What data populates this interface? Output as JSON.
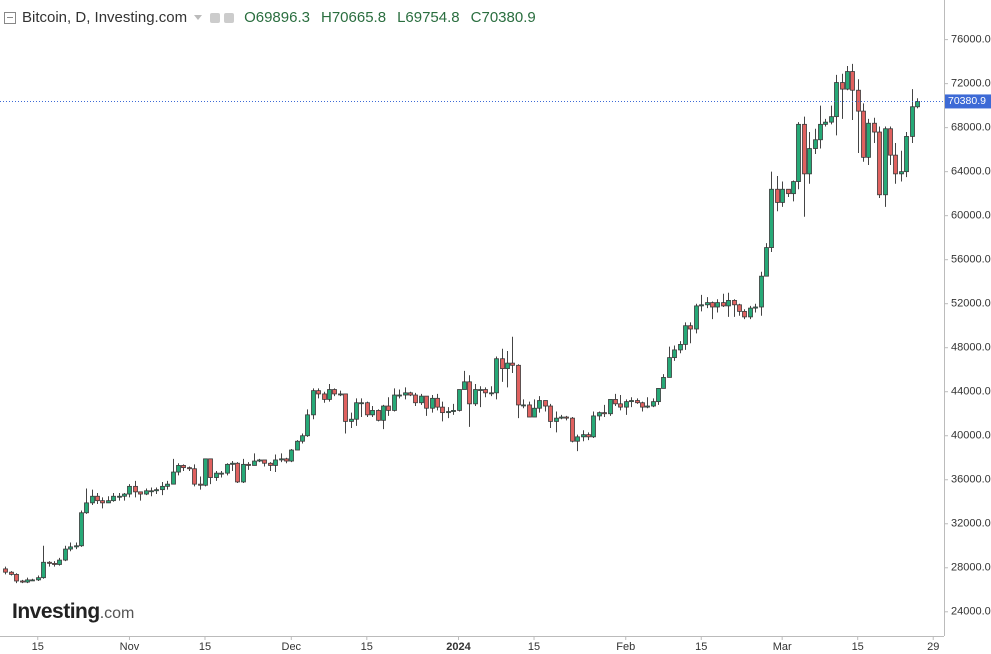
{
  "chart_data": {
    "type": "candlestick",
    "title": "Bitcoin, D, Investing.com",
    "ohlc_labels": [
      "O",
      "H",
      "L",
      "C"
    ],
    "watermark": [
      "Investing",
      ".com"
    ],
    "up_color": "#26a977",
    "down_color": "#e0615f",
    "x": [
      "2023-10-09",
      "2023-10-10",
      "2023-10-11",
      "2023-10-12",
      "2023-10-13",
      "2023-10-14",
      "2023-10-15",
      "2023-10-16",
      "2023-10-17",
      "2023-10-18",
      "2023-10-19",
      "2023-10-20",
      "2023-10-21",
      "2023-10-22",
      "2023-10-23",
      "2023-10-24",
      "2023-10-25",
      "2023-10-26",
      "2023-10-27",
      "2023-10-28",
      "2023-10-29",
      "2023-10-30",
      "2023-10-31",
      "2023-11-01",
      "2023-11-02",
      "2023-11-03",
      "2023-11-04",
      "2023-11-05",
      "2023-11-06",
      "2023-11-07",
      "2023-11-08",
      "2023-11-09",
      "2023-11-10",
      "2023-11-11",
      "2023-11-12",
      "2023-11-13",
      "2023-11-14",
      "2023-11-15",
      "2023-11-16",
      "2023-11-17",
      "2023-11-18",
      "2023-11-19",
      "2023-11-20",
      "2023-11-21",
      "2023-11-22",
      "2023-11-23",
      "2023-11-24",
      "2023-11-25",
      "2023-11-26",
      "2023-11-27",
      "2023-11-28",
      "2023-11-29",
      "2023-11-30",
      "2023-12-01",
      "2023-12-02",
      "2023-12-03",
      "2023-12-04",
      "2023-12-05",
      "2023-12-06",
      "2023-12-07",
      "2023-12-08",
      "2023-12-09",
      "2023-12-10",
      "2023-12-11",
      "2023-12-12",
      "2023-12-13",
      "2023-12-14",
      "2023-12-15",
      "2023-12-16",
      "2023-12-17",
      "2023-12-18",
      "2023-12-19",
      "2023-12-20",
      "2023-12-21",
      "2023-12-22",
      "2023-12-23",
      "2023-12-24",
      "2023-12-25",
      "2023-12-26",
      "2023-12-27",
      "2023-12-28",
      "2023-12-29",
      "2023-12-30",
      "2023-12-31",
      "2024-01-01",
      "2024-01-02",
      "2024-01-03",
      "2024-01-04",
      "2024-01-05",
      "2024-01-06",
      "2024-01-07",
      "2024-01-08",
      "2024-01-09",
      "2024-01-10",
      "2024-01-11",
      "2024-01-12",
      "2024-01-13",
      "2024-01-14",
      "2024-01-15",
      "2024-01-16",
      "2024-01-17",
      "2024-01-18",
      "2024-01-19",
      "2024-01-20",
      "2024-01-21",
      "2024-01-22",
      "2024-01-23",
      "2024-01-24",
      "2024-01-25",
      "2024-01-26",
      "2024-01-27",
      "2024-01-28",
      "2024-01-29",
      "2024-01-30",
      "2024-01-31",
      "2024-02-01",
      "2024-02-02",
      "2024-02-03",
      "2024-02-04",
      "2024-02-05",
      "2024-02-06",
      "2024-02-07",
      "2024-02-08",
      "2024-02-09",
      "2024-02-10",
      "2024-02-11",
      "2024-02-12",
      "2024-02-13",
      "2024-02-14",
      "2024-02-15",
      "2024-02-16",
      "2024-02-17",
      "2024-02-18",
      "2024-02-19",
      "2024-02-20",
      "2024-02-21",
      "2024-02-22",
      "2024-02-23",
      "2024-02-24",
      "2024-02-25",
      "2024-02-26",
      "2024-02-27",
      "2024-02-28",
      "2024-02-29",
      "2024-03-01",
      "2024-03-02",
      "2024-03-03",
      "2024-03-04",
      "2024-03-05",
      "2024-03-06",
      "2024-03-07",
      "2024-03-08",
      "2024-03-09",
      "2024-03-10",
      "2024-03-11",
      "2024-03-12",
      "2024-03-13",
      "2024-03-14",
      "2024-03-15",
      "2024-03-16",
      "2024-03-17",
      "2024-03-18",
      "2024-03-19",
      "2024-03-20",
      "2024-03-21",
      "2024-03-22",
      "2024-03-23",
      "2024-03-24",
      "2024-03-25",
      "2024-03-26"
    ],
    "open": [
      27900,
      27600,
      27400,
      26800,
      26700,
      26900,
      26900,
      27100,
      28500,
      28400,
      28300,
      28700,
      29700,
      29900,
      30000,
      33000,
      33900,
      34500,
      34100,
      33900,
      34100,
      34500,
      34500,
      34700,
      35400,
      34900,
      34700,
      35000,
      35000,
      35100,
      35400,
      35600,
      36700,
      37300,
      37100,
      37000,
      35600,
      35500,
      37900,
      36200,
      36600,
      36600,
      37400,
      37500,
      35800,
      37400,
      37300,
      37700,
      37800,
      37500,
      37300,
      37800,
      37900,
      37700,
      38700,
      39500,
      40000,
      41900,
      44100,
      43800,
      43300,
      44200,
      43800,
      43800,
      41300,
      41500,
      43000,
      43000,
      41900,
      42300,
      41400,
      42700,
      42300,
      43700,
      43700,
      43900,
      43700,
      43000,
      43600,
      42500,
      43400,
      42600,
      42100,
      42200,
      42300,
      44200,
      44900,
      42900,
      44200,
      44200,
      43900,
      43900,
      47000,
      46100,
      46600,
      46400,
      42800,
      42800,
      41700,
      42500,
      43200,
      42700,
      41300,
      41600,
      41700,
      41600,
      39500,
      39900,
      40100,
      39900,
      41800,
      42100,
      42000,
      43300,
      42900,
      42600,
      43100,
      43200,
      43000,
      42600,
      42700,
      43100,
      44300,
      45300,
      47100,
      47800,
      48300,
      50000,
      49700,
      51800,
      51900,
      52100,
      51700,
      52100,
      51800,
      52300,
      51900,
      51300,
      50800,
      51600,
      51700,
      54500,
      57100,
      62400,
      61200,
      62400,
      62000,
      63100,
      68300,
      63800,
      66100,
      66900,
      68300,
      68500,
      69000,
      72100,
      71500,
      73100,
      71400,
      69500,
      65300,
      68400,
      67600,
      61900,
      67900,
      65500,
      63800,
      64000,
      67200,
      69896.3
    ],
    "high": [
      28100,
      27700,
      27500,
      26900,
      27100,
      27000,
      27300,
      30000,
      28600,
      28600,
      28900,
      30000,
      30300,
      30300,
      33200,
      35200,
      35100,
      34800,
      34400,
      34500,
      34800,
      34800,
      34800,
      35600,
      35900,
      34900,
      35200,
      35300,
      35300,
      35800,
      35900,
      37900,
      37500,
      37400,
      37200,
      37400,
      36300,
      37900,
      37900,
      36800,
      36800,
      37500,
      37700,
      37600,
      37900,
      37600,
      38400,
      37900,
      37800,
      37600,
      38300,
      38400,
      38000,
      38800,
      39600,
      40200,
      42400,
      44300,
      44300,
      44000,
      44700,
      44300,
      44100,
      43800,
      42100,
      43400,
      43400,
      43100,
      42700,
      42400,
      42800,
      43500,
      44300,
      44200,
      44400,
      44000,
      43900,
      43800,
      43600,
      43700,
      43800,
      43100,
      42600,
      42900,
      44200,
      45900,
      45500,
      44700,
      44500,
      44400,
      44500,
      47200,
      47900,
      47700,
      49000,
      46500,
      43300,
      43100,
      43300,
      43600,
      43200,
      42900,
      42200,
      41900,
      41800,
      41700,
      40100,
      40500,
      40300,
      42200,
      42200,
      42800,
      43300,
      43800,
      43700,
      43300,
      43500,
      43400,
      43100,
      43500,
      43400,
      44300,
      45600,
      48100,
      48200,
      48600,
      50300,
      50300,
      52000,
      52800,
      52600,
      52200,
      52400,
      52900,
      53000,
      52400,
      52000,
      51500,
      51800,
      52000,
      54900,
      57500,
      64000,
      63600,
      63100,
      62400,
      63200,
      68500,
      69000,
      67600,
      67900,
      70000,
      68800,
      70000,
      72800,
      72900,
      73600,
      73800,
      72400,
      70200,
      68800,
      68900,
      68100,
      68100,
      68100,
      66600,
      65900,
      67600,
      71500,
      70665.8
    ],
    "low": [
      27400,
      27300,
      26600,
      26600,
      26600,
      26800,
      26800,
      27000,
      28100,
      28100,
      28200,
      28600,
      29500,
      29700,
      29900,
      32900,
      33700,
      33800,
      33400,
      33900,
      34000,
      34100,
      34100,
      34400,
      34400,
      34100,
      34600,
      34500,
      34700,
      34600,
      35100,
      35600,
      36400,
      36800,
      36800,
      35400,
      35100,
      35400,
      35600,
      35900,
      36200,
      36400,
      36800,
      35700,
      35700,
      36900,
      37300,
      37600,
      37200,
      36800,
      36700,
      37600,
      37500,
      37600,
      38700,
      39300,
      39900,
      41500,
      43400,
      43000,
      43100,
      43600,
      43600,
      40200,
      40700,
      40900,
      41700,
      41700,
      41700,
      41300,
      40600,
      41800,
      42200,
      43400,
      43300,
      43600,
      42700,
      42800,
      41800,
      42100,
      42300,
      41300,
      41600,
      41900,
      42200,
      44200,
      40800,
      42700,
      42600,
      43500,
      43600,
      43300,
      44900,
      44400,
      45700,
      41600,
      42500,
      41700,
      41700,
      42100,
      42200,
      40700,
      40300,
      41500,
      41400,
      39400,
      38600,
      39500,
      39600,
      39800,
      41400,
      41700,
      41800,
      42700,
      42300,
      41900,
      42600,
      42900,
      42200,
      42500,
      42600,
      42800,
      44300,
      45300,
      46800,
      47500,
      47800,
      48400,
      49300,
      51300,
      51600,
      50600,
      51200,
      51700,
      50800,
      50800,
      50900,
      50600,
      50600,
      51200,
      50900,
      54500,
      56700,
      60400,
      60800,
      61700,
      61300,
      62400,
      59900,
      62900,
      65600,
      66100,
      68100,
      68300,
      67300,
      68800,
      71400,
      68700,
      65700,
      64900,
      64600,
      66600,
      61600,
      60800,
      64600,
      62900,
      63100,
      63500,
      66600,
      69754.8
    ],
    "close": [
      27600,
      27400,
      26800,
      26700,
      26900,
      26900,
      27100,
      28500,
      28400,
      28300,
      28700,
      29700,
      29900,
      30000,
      33000,
      33900,
      34500,
      34100,
      33900,
      34100,
      34500,
      34500,
      34700,
      35400,
      34900,
      34700,
      35000,
      35000,
      35100,
      35400,
      35600,
      36700,
      37300,
      37100,
      37000,
      35600,
      35500,
      37900,
      36200,
      36600,
      36600,
      37400,
      37500,
      35800,
      37400,
      37300,
      37700,
      37800,
      37500,
      37300,
      37800,
      37900,
      37700,
      38700,
      39500,
      40000,
      41900,
      44100,
      43800,
      43300,
      44200,
      43800,
      43800,
      41300,
      41500,
      43000,
      43000,
      41900,
      42300,
      41400,
      42700,
      42300,
      43700,
      43700,
      43900,
      43700,
      43000,
      43600,
      42500,
      43400,
      42600,
      42100,
      42200,
      42300,
      44200,
      44900,
      42900,
      44200,
      44200,
      43900,
      43900,
      47000,
      46100,
      46600,
      46400,
      42800,
      42800,
      41700,
      42500,
      43200,
      42700,
      41300,
      41600,
      41700,
      41600,
      39500,
      39900,
      40100,
      39900,
      41800,
      42100,
      42000,
      43300,
      42900,
      42600,
      43100,
      43200,
      43000,
      42600,
      42700,
      43100,
      44300,
      45300,
      47100,
      47800,
      48300,
      50000,
      49700,
      51800,
      51900,
      52100,
      51700,
      52100,
      51800,
      52300,
      51900,
      51300,
      50800,
      51600,
      51700,
      54500,
      57100,
      62400,
      61200,
      62400,
      62000,
      63100,
      68300,
      63800,
      66100,
      66900,
      68300,
      68500,
      69000,
      72100,
      71500,
      73100,
      71400,
      69500,
      65300,
      68400,
      67600,
      61900,
      67900,
      65500,
      63800,
      64000,
      67200,
      69900,
      70380.9
    ],
    "xlim": [
      "2023-10-08",
      "2024-03-31"
    ],
    "xticks": [
      {
        "value": "2023-10-15",
        "label": "15"
      },
      {
        "value": "2023-11-01",
        "label": "Nov"
      },
      {
        "value": "2023-11-15",
        "label": "15"
      },
      {
        "value": "2023-12-01",
        "label": "Dec"
      },
      {
        "value": "2023-12-15",
        "label": "15"
      },
      {
        "value": "2024-01-01",
        "label": "2024"
      },
      {
        "value": "2024-01-15",
        "label": "15"
      },
      {
        "value": "2024-02-01",
        "label": "Feb"
      },
      {
        "value": "2024-02-15",
        "label": "15"
      },
      {
        "value": "2024-03-01",
        "label": "Mar"
      },
      {
        "value": "2024-03-15",
        "label": "15"
      },
      {
        "value": "2024-03-29",
        "label": "29"
      }
    ],
    "ylim": [
      21800,
      79600
    ],
    "yticks": [
      {
        "value": 24000,
        "label": "24000.0"
      },
      {
        "value": 28000,
        "label": "28000.0"
      },
      {
        "value": 32000,
        "label": "32000.0"
      },
      {
        "value": 36000,
        "label": "36000.0"
      },
      {
        "value": 40000,
        "label": "40000.0"
      },
      {
        "value": 44000,
        "label": "44000.0"
      },
      {
        "value": 48000,
        "label": "48000.0"
      },
      {
        "value": 52000,
        "label": "52000.0"
      },
      {
        "value": 56000,
        "label": "56000.0"
      },
      {
        "value": 60000,
        "label": "60000.0"
      },
      {
        "value": 64000,
        "label": "64000.0"
      },
      {
        "value": 68000,
        "label": "68000.0"
      },
      {
        "value": 72000,
        "label": "72000.0"
      },
      {
        "value": 76000,
        "label": "76000.0"
      }
    ],
    "price_line_color": "#3d6ad6",
    "grid": false
  }
}
